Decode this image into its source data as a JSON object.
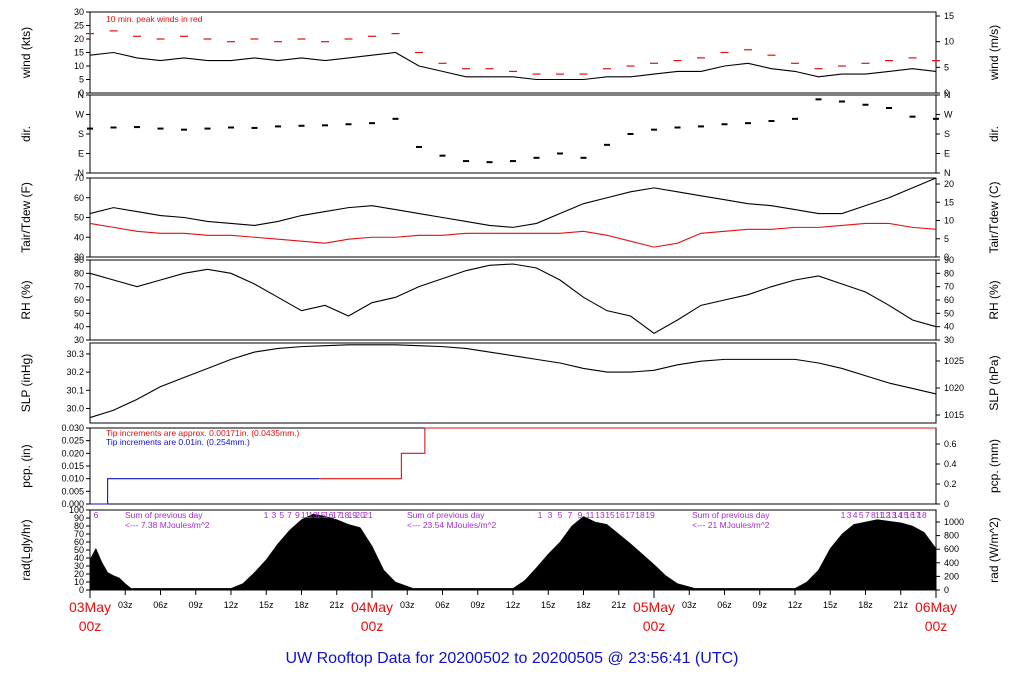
{
  "footer": {
    "title": "UW Rooftop Data for 20200502  to  20200505 @ 23:56:41  (UTC)"
  },
  "colors": {
    "black": "#000000",
    "red": "#e01010",
    "blue": "#1010c8",
    "purple": "#a030c8"
  },
  "chart_data": [
    {
      "id": "wind",
      "type": "line",
      "ylabel_left": "wind (kts)",
      "ylabel_right": "wind (m/s)",
      "ylim": [
        0,
        30
      ],
      "yticks": [
        0,
        5,
        10,
        15,
        20,
        25,
        30
      ],
      "yticks_right": [
        0,
        5,
        10,
        15
      ],
      "annotation": "10 min. peak winds in red",
      "series": [
        {
          "color": "black",
          "x": [
            0,
            2,
            4,
            6,
            8,
            10,
            12,
            14,
            16,
            18,
            20,
            22,
            24,
            26,
            28,
            30,
            32,
            34,
            36,
            38,
            40,
            42,
            44,
            46,
            48,
            50,
            52,
            54,
            56,
            58,
            60,
            62,
            64,
            66,
            68,
            70,
            72
          ],
          "y": [
            14,
            15,
            13,
            12,
            13,
            12,
            12,
            13,
            12,
            13,
            12,
            13,
            14,
            15,
            10,
            8,
            6,
            6,
            6,
            5,
            5,
            5,
            6,
            6,
            7,
            8,
            8,
            10,
            11,
            9,
            8,
            6,
            7,
            7,
            8,
            9,
            8
          ]
        },
        {
          "color": "red",
          "style": "dashes",
          "x": [
            0,
            2,
            4,
            6,
            8,
            10,
            12,
            14,
            16,
            18,
            20,
            22,
            24,
            26,
            28,
            30,
            32,
            34,
            36,
            38,
            40,
            42,
            44,
            46,
            48,
            50,
            52,
            54,
            56,
            58,
            60,
            62,
            64,
            66,
            68,
            70,
            72
          ],
          "y": [
            22,
            23,
            21,
            20,
            21,
            20,
            19,
            20,
            19,
            20,
            19,
            20,
            21,
            22,
            15,
            11,
            9,
            9,
            8,
            7,
            7,
            7,
            9,
            10,
            11,
            12,
            13,
            15,
            16,
            14,
            11,
            9,
            10,
            11,
            12,
            13,
            12
          ]
        }
      ]
    },
    {
      "id": "dir",
      "type": "scatter",
      "ylabel_left": "dir.",
      "ylabel_right": "dir.",
      "ylim": [
        0,
        360
      ],
      "ytick_values": [
        0,
        90,
        180,
        270,
        360
      ],
      "ytick_labels": [
        "N",
        "E",
        "S",
        "W",
        "N"
      ],
      "series": [
        {
          "color": "black",
          "x": [
            0,
            2,
            4,
            6,
            8,
            10,
            12,
            14,
            16,
            18,
            20,
            22,
            24,
            26,
            28,
            30,
            32,
            34,
            36,
            38,
            40,
            42,
            44,
            46,
            48,
            50,
            52,
            54,
            56,
            58,
            60,
            62,
            64,
            66,
            68,
            70,
            72
          ],
          "y": [
            205,
            210,
            212,
            205,
            200,
            205,
            210,
            208,
            215,
            218,
            220,
            225,
            230,
            250,
            120,
            80,
            55,
            50,
            55,
            70,
            90,
            70,
            130,
            180,
            200,
            210,
            215,
            225,
            230,
            240,
            250,
            340,
            330,
            315,
            300,
            260,
            250
          ]
        }
      ]
    },
    {
      "id": "temp",
      "type": "line",
      "ylabel_left": "Tair/Tdew (F)",
      "ylabel_right": "Tair/Tdew (C)",
      "ylim": [
        30,
        70
      ],
      "yticks": [
        30,
        40,
        50,
        60,
        70
      ],
      "yticks_right": [
        0,
        5,
        10,
        15,
        20
      ],
      "series": [
        {
          "color": "black",
          "x": [
            0,
            2,
            4,
            6,
            8,
            10,
            12,
            14,
            16,
            18,
            20,
            22,
            24,
            26,
            28,
            30,
            32,
            34,
            36,
            38,
            40,
            42,
            44,
            46,
            48,
            50,
            52,
            54,
            56,
            58,
            60,
            62,
            64,
            66,
            68,
            70,
            72
          ],
          "y": [
            52,
            55,
            53,
            51,
            50,
            48,
            47,
            46,
            48,
            51,
            53,
            55,
            56,
            54,
            52,
            50,
            48,
            46,
            45,
            47,
            52,
            57,
            60,
            63,
            65,
            63,
            61,
            59,
            57,
            56,
            54,
            52,
            52,
            56,
            60,
            65,
            70
          ]
        },
        {
          "color": "red",
          "x": [
            0,
            2,
            4,
            6,
            8,
            10,
            12,
            14,
            16,
            18,
            20,
            22,
            24,
            26,
            28,
            30,
            32,
            34,
            36,
            38,
            40,
            42,
            44,
            46,
            48,
            50,
            52,
            54,
            56,
            58,
            60,
            62,
            64,
            66,
            68,
            70,
            72
          ],
          "y": [
            47,
            45,
            43,
            42,
            42,
            41,
            41,
            40,
            39,
            38,
            37,
            39,
            40,
            40,
            41,
            41,
            42,
            42,
            42,
            42,
            42,
            43,
            41,
            38,
            35,
            37,
            42,
            43,
            44,
            44,
            45,
            45,
            46,
            47,
            47,
            45,
            44
          ]
        }
      ]
    },
    {
      "id": "rh",
      "type": "line",
      "ylabel_left": "RH (%)",
      "ylabel_right": "RH (%)",
      "ylim": [
        30,
        90
      ],
      "yticks": [
        30,
        40,
        50,
        60,
        70,
        80,
        90
      ],
      "yticks_right": [
        30,
        40,
        50,
        60,
        70,
        80,
        90
      ],
      "series": [
        {
          "color": "black",
          "x": [
            0,
            2,
            4,
            6,
            8,
            10,
            12,
            14,
            16,
            18,
            20,
            22,
            24,
            26,
            28,
            30,
            32,
            34,
            36,
            38,
            40,
            42,
            44,
            46,
            48,
            50,
            52,
            54,
            56,
            58,
            60,
            62,
            64,
            66,
            68,
            70,
            72
          ],
          "y": [
            80,
            75,
            70,
            75,
            80,
            83,
            80,
            72,
            62,
            52,
            56,
            48,
            58,
            62,
            70,
            76,
            82,
            86,
            87,
            84,
            75,
            62,
            52,
            48,
            35,
            45,
            56,
            60,
            64,
            70,
            75,
            78,
            72,
            66,
            56,
            45,
            40
          ]
        }
      ]
    },
    {
      "id": "slp",
      "type": "line",
      "ylabel_left": "SLP (inHg)",
      "ylabel_right": "SLP (hPa)",
      "ylim": [
        29.92,
        30.36
      ],
      "yticks": [
        30.0,
        30.1,
        30.2,
        30.3
      ],
      "ytick_labels": [
        "30.0",
        "30.1",
        "30.2",
        "30.3"
      ],
      "yticks_right": [
        1015,
        1020,
        1025
      ],
      "series": [
        {
          "color": "black",
          "x": [
            0,
            2,
            4,
            6,
            8,
            10,
            12,
            14,
            16,
            18,
            20,
            22,
            24,
            26,
            28,
            30,
            32,
            34,
            36,
            38,
            40,
            42,
            44,
            46,
            48,
            50,
            52,
            54,
            56,
            58,
            60,
            62,
            64,
            66,
            68,
            70,
            72
          ],
          "y": [
            29.95,
            29.99,
            30.05,
            30.12,
            30.17,
            30.22,
            30.27,
            30.31,
            30.33,
            30.34,
            30.345,
            30.35,
            30.35,
            30.35,
            30.345,
            30.34,
            30.33,
            30.31,
            30.29,
            30.27,
            30.25,
            30.22,
            30.2,
            30.2,
            30.21,
            30.24,
            30.26,
            30.27,
            30.27,
            30.27,
            30.27,
            30.25,
            30.22,
            30.18,
            30.14,
            30.11,
            30.08
          ]
        }
      ]
    },
    {
      "id": "pcp",
      "type": "line",
      "ylabel_left": "pcp. (in)",
      "ylabel_right": "pcp. (mm)",
      "ylim": [
        0,
        0.03
      ],
      "yticks": [
        0,
        0.005,
        0.01,
        0.015,
        0.02,
        0.025,
        0.03
      ],
      "ytick_labels": [
        "0.000",
        "0.005",
        "0.010",
        "0.015",
        "0.020",
        "0.025",
        "0.030"
      ],
      "yticks_right": [
        0,
        0.2,
        0.4,
        0.6
      ],
      "annotations": [
        {
          "text": "Tip increments are approx. 0.00171in. (0.0435mm.)",
          "color": "red"
        },
        {
          "text": "Tip increments are 0.01in. (0.254mm.)",
          "color": "blue"
        }
      ],
      "series": [
        {
          "color": "blue",
          "step": true,
          "x": [
            0,
            1.5,
            1.5,
            19.5
          ],
          "y": [
            0,
            0,
            0.01,
            0.01
          ]
        },
        {
          "color": "red",
          "step": true,
          "x": [
            19.5,
            26.5,
            26.5,
            28.5,
            28.5,
            72
          ],
          "y": [
            0.01,
            0.01,
            0.02,
            0.02,
            0.03,
            0.03
          ]
        }
      ]
    },
    {
      "id": "rad",
      "type": "area",
      "ylabel_left": "rad(Lgly/hr)",
      "ylabel_right": "rad (W/m^2)",
      "ylim": [
        0,
        100
      ],
      "yticks": [
        0,
        10,
        20,
        30,
        40,
        50,
        60,
        70,
        80,
        90,
        100
      ],
      "yticks_right": [
        0,
        200,
        400,
        600,
        800,
        1000
      ],
      "hour_labels_1": [
        "6"
      ],
      "hour_labels_2": [
        "1",
        "3",
        "5",
        "7",
        "9",
        "11",
        "13",
        "15",
        "16",
        "17",
        "18",
        "19",
        "20",
        "21"
      ],
      "hour_labels_3": [
        "1",
        "3",
        "5",
        "7",
        "9",
        "11",
        "13",
        "15",
        "16",
        "17",
        "18",
        "19"
      ],
      "hour_labels_4": [
        "1",
        "3",
        "4",
        "5",
        "7",
        "8",
        "11",
        "12",
        "13",
        "14",
        "15",
        "16",
        "17",
        "18"
      ],
      "daily_sums": [
        {
          "line1": "Sum of previous day",
          "line2": "<--- 7.38 MJoules/m^2"
        },
        {
          "line1": "Sum of previous day",
          "line2": "<--- 23.54 MJoules/m^2"
        },
        {
          "line1": "Sum of previous day",
          "line2": "<--- 21 MJoules/m^2"
        }
      ],
      "series": [
        {
          "color": "black",
          "x": [
            0,
            0.5,
            1,
            1.5,
            2,
            2.5,
            3,
            3.5,
            12,
            13,
            14,
            15,
            16,
            17,
            18,
            19,
            20,
            21,
            22,
            23,
            24,
            25,
            26,
            27.5,
            36,
            37,
            38,
            39,
            40,
            41,
            42,
            43,
            44,
            45,
            46,
            47,
            48,
            49,
            50,
            51.5,
            60,
            61,
            62,
            63,
            64,
            65,
            66,
            67,
            68,
            69,
            70,
            71,
            72
          ],
          "y": [
            38,
            52,
            35,
            22,
            18,
            15,
            8,
            2,
            2,
            8,
            22,
            38,
            58,
            75,
            88,
            95,
            92,
            88,
            82,
            78,
            55,
            25,
            10,
            2,
            2,
            12,
            28,
            45,
            60,
            80,
            92,
            85,
            82,
            70,
            58,
            45,
            32,
            18,
            8,
            2,
            2,
            10,
            25,
            52,
            70,
            82,
            85,
            88,
            86,
            84,
            80,
            72,
            52
          ]
        }
      ]
    }
  ],
  "xaxis": {
    "hour_ticks": [
      "03z",
      "06z",
      "09z",
      "12z",
      "15z",
      "18z",
      "21z",
      "03z",
      "06z",
      "09z",
      "12z",
      "15z",
      "18z",
      "21z",
      "03z",
      "06z",
      "09z",
      "12z",
      "15z",
      "18z",
      "21z"
    ],
    "day_labels": [
      {
        "date": "03May",
        "hour": "00z"
      },
      {
        "date": "04May",
        "hour": "00z"
      },
      {
        "date": "05May",
        "hour": "00z"
      },
      {
        "date": "06May",
        "hour": "00z"
      }
    ]
  }
}
